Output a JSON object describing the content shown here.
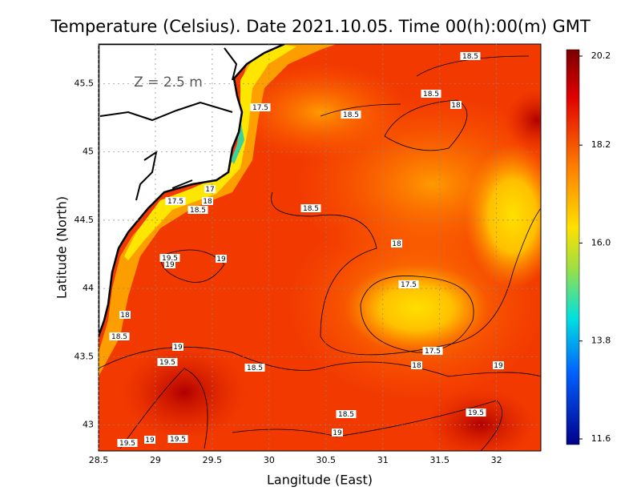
{
  "title": "Temperature (Celsius). Date 2021.10.05. Time 00(h):00(m)  GMT",
  "depth_label": "Z  =  2.5  m",
  "x_axis": {
    "label": "Langitude (East)",
    "lim": [
      28.5,
      32.39
    ],
    "ticks": [
      28.5,
      29,
      29.5,
      30,
      30.5,
      31,
      31.5,
      32
    ]
  },
  "y_axis": {
    "label": "Latitude (North)",
    "lim": [
      42.81,
      45.79
    ],
    "ticks": [
      43,
      43.5,
      44,
      44.5,
      45,
      45.5
    ]
  },
  "colorbar": {
    "lim": [
      11.6,
      20.2
    ],
    "ticks": [
      20.2,
      18.2,
      {
        "value": 16,
        "label": "16.0"
      },
      13.8,
      11.6
    ]
  },
  "contour_labels": [
    "18.5",
    "18.5",
    "18",
    "18.5",
    "17.5",
    "17",
    "17.5",
    "18",
    "18.5",
    "18.5",
    "18",
    "19.5",
    "19",
    "19",
    "17.5",
    "18",
    "18.5",
    "19",
    "19.5",
    "18.5",
    "17.5",
    "18",
    "19",
    "18.5",
    "19.5",
    "19",
    "19.5",
    "19",
    "19.5"
  ]
}
